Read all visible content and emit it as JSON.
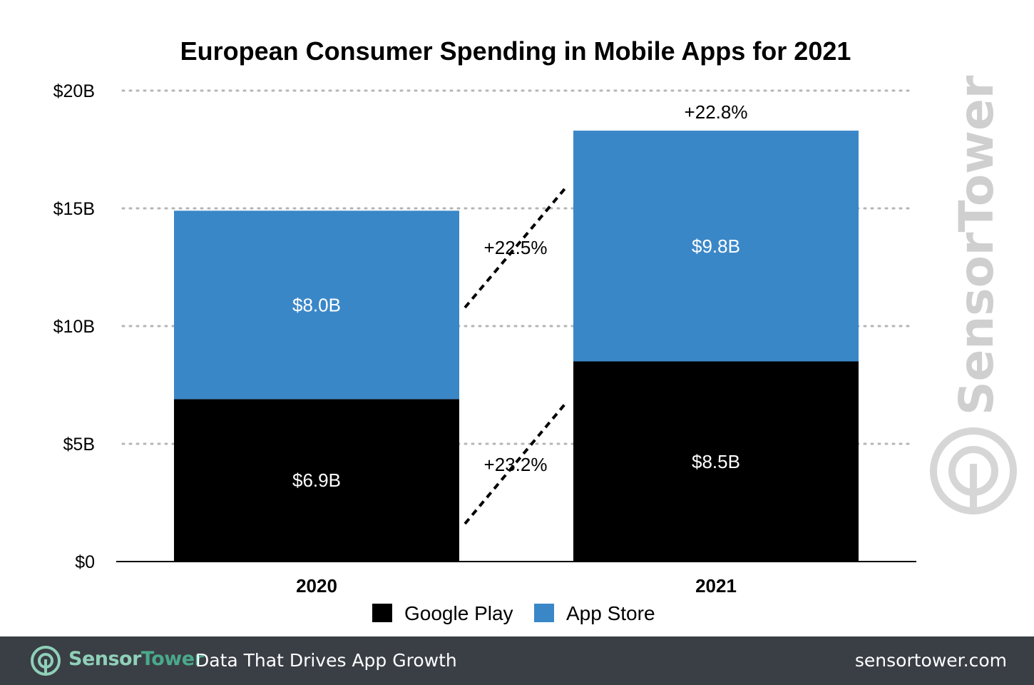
{
  "chart_data": {
    "type": "bar",
    "stacked": true,
    "title": "European Consumer Spending in Mobile Apps for 2021",
    "categories": [
      "2020",
      "2021"
    ],
    "series": [
      {
        "name": "Google Play",
        "color": "#000000",
        "values": [
          6.9,
          8.5
        ],
        "value_labels": [
          "$6.9B",
          "$8.5B"
        ]
      },
      {
        "name": "App Store",
        "color": "#3a87c8",
        "values": [
          8.0,
          9.8
        ],
        "value_labels": [
          "$8.0B",
          "$9.8B"
        ]
      }
    ],
    "ylim": [
      0,
      20
    ],
    "yticks": [
      0,
      5,
      10,
      15,
      20
    ],
    "ytick_labels": [
      "$0",
      "$5B",
      "$10B",
      "$15B",
      "$20B"
    ],
    "grid": true,
    "legend_position": "bottom",
    "annotations": {
      "total_growth": "+22.8%",
      "app_store_growth": "+22.5%",
      "google_play_growth": "+23.2%"
    }
  },
  "watermark": {
    "text": "SensorTower"
  },
  "footer": {
    "brand_sensor": "Sensor",
    "brand_tower": "Tower",
    "tagline": "Data That Drives App Growth",
    "url": "sensortower.com",
    "logo_icon": "sensor-tower-logo-icon"
  }
}
